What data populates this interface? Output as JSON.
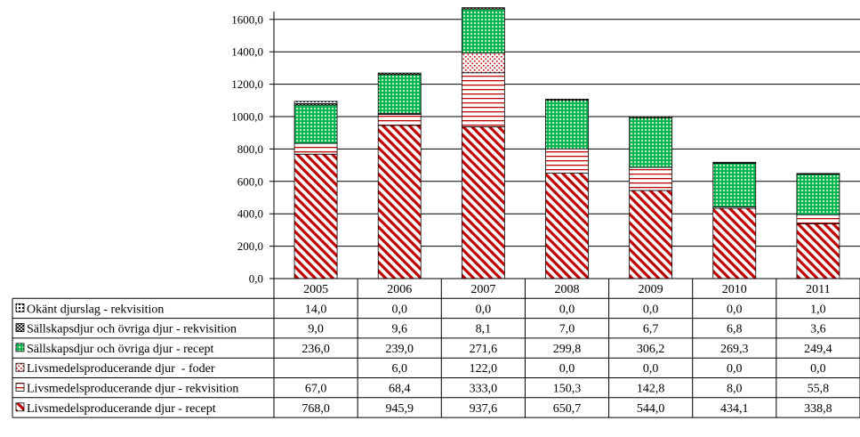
{
  "chart_data": {
    "type": "bar",
    "stacked": true,
    "categories": [
      "2005",
      "2006",
      "2007",
      "2008",
      "2009",
      "2010",
      "2011"
    ],
    "ylim": [
      0,
      1600
    ],
    "yticks": [
      "0,0",
      "200,0",
      "400,0",
      "600,0",
      "800,0",
      "1000,0",
      "1200,0",
      "1400,0",
      "1600,0"
    ],
    "grid": true,
    "legend": "left-of-data-table",
    "series": [
      {
        "name": "Livsmedelsproducerande djur - recept",
        "values": [
          768.0,
          945.9,
          937.6,
          650.7,
          544.0,
          434.1,
          338.8
        ],
        "labels": [
          "768,0",
          "945,9",
          "937,6",
          "650,7",
          "544,0",
          "434,1",
          "338,8"
        ],
        "color": "#c00000",
        "pattern": "diagonal-stripes"
      },
      {
        "name": "Livsmedelsproducerande djur - rekvisition",
        "values": [
          67.0,
          68.4,
          333.0,
          150.3,
          142.8,
          8.0,
          55.8
        ],
        "labels": [
          "67,0",
          "68,4",
          "333,0",
          "150,3",
          "142,8",
          "8,0",
          "55,8"
        ],
        "color": "#c00000",
        "pattern": "horizontal-lines"
      },
      {
        "name": "Livsmedelsproducerande djur  - foder",
        "values": [
          null,
          6.0,
          122.0,
          0.0,
          0.0,
          0.0,
          0.0
        ],
        "labels": [
          "",
          "6,0",
          "122,0",
          "0,0",
          "0,0",
          "0,0",
          "0,0"
        ],
        "color": "#c00000",
        "pattern": "dots"
      },
      {
        "name": "Sällskapsdjur och övriga djur - recept",
        "values": [
          236.0,
          239.0,
          271.6,
          299.8,
          306.2,
          269.3,
          249.4
        ],
        "labels": [
          "236,0",
          "239,0",
          "271,6",
          "299,8",
          "306,2",
          "269,3",
          "249,4"
        ],
        "color": "#00b050",
        "pattern": "grid"
      },
      {
        "name": "Sällskapsdjur och övriga djur - rekvisition",
        "values": [
          9.0,
          9.6,
          8.1,
          7.0,
          6.7,
          6.8,
          3.6
        ],
        "labels": [
          "9,0",
          "9,6",
          "8,1",
          "7,0",
          "6,7",
          "6,8",
          "3,6"
        ],
        "color": "#000000",
        "pattern": "cross"
      },
      {
        "name": "Okänt djurslag - rekvisition",
        "values": [
          14.0,
          0.0,
          0.0,
          0.0,
          0.0,
          0.0,
          1.0
        ],
        "labels": [
          "14,0",
          "0,0",
          "0,0",
          "0,0",
          "0,0",
          "0,0",
          "1,0"
        ],
        "color": "#000000",
        "pattern": "dotted-box"
      }
    ],
    "table_row_order": [
      5,
      4,
      3,
      2,
      1,
      0
    ]
  }
}
